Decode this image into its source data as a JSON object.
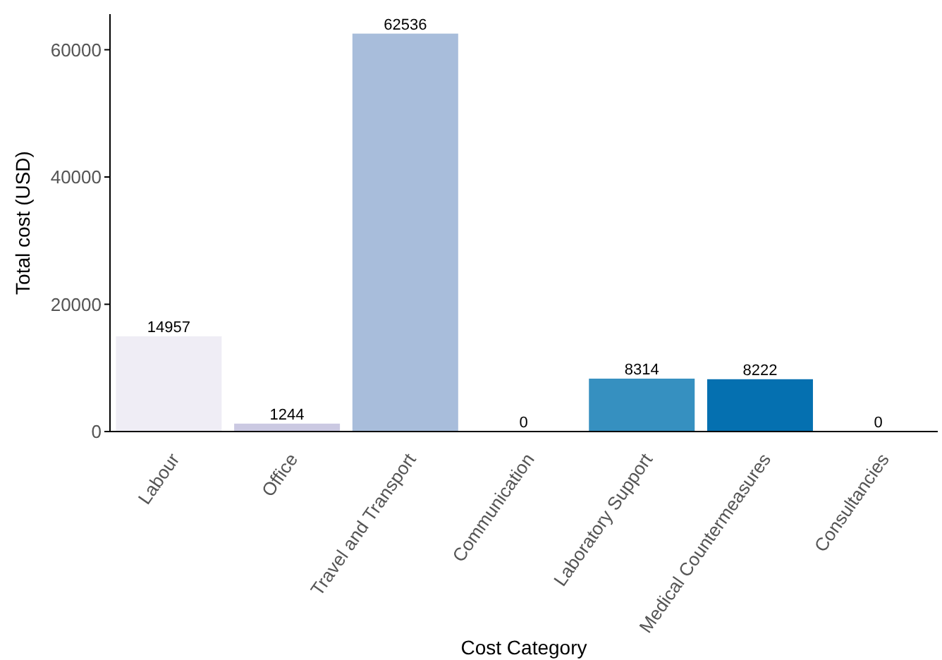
{
  "chart_data": {
    "type": "bar",
    "xlabel": "Cost Category",
    "ylabel": "Total cost (USD)",
    "categories": [
      "Labour",
      "Office",
      "Travel and Transport",
      "Communication",
      "Laboratory Support",
      "Medical Countermeasures",
      "Consultancies"
    ],
    "values": [
      14957,
      1244,
      62536,
      0,
      8314,
      8222,
      0
    ],
    "colors": [
      "#efedf5",
      "#cbc9e2",
      "#a8bddb",
      "#74a9cf",
      "#3690c0",
      "#0570b0",
      "#034e7b"
    ],
    "ylim": [
      0,
      65600
    ],
    "yticks": [
      0,
      20000,
      40000,
      60000
    ],
    "grid": false,
    "legend": false,
    "data_labels": true
  }
}
